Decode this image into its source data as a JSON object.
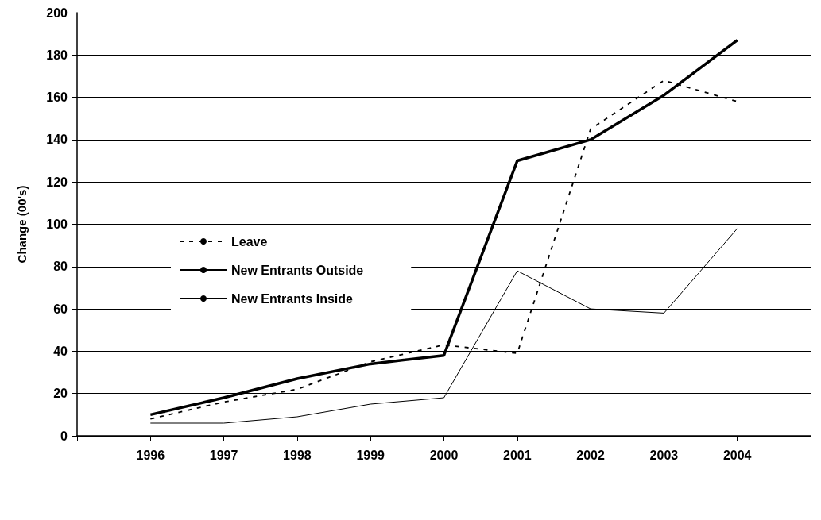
{
  "chart_data": {
    "type": "line",
    "ylabel": "Change (00's)",
    "categories": [
      null,
      "1996",
      "1997",
      "1998",
      "1999",
      "2000",
      "2001",
      "2002",
      "2003",
      "2004",
      null
    ],
    "series": [
      {
        "name": "Leave",
        "color": "#000000",
        "line_style": "dashed",
        "values": [
          null,
          8,
          16,
          22,
          35,
          43,
          39,
          145,
          168,
          158,
          null
        ]
      },
      {
        "name": "New Entrants Outside",
        "color": "#000000",
        "line_style": "solid",
        "values": [
          null,
          6,
          6,
          9,
          15,
          18,
          78,
          60,
          58,
          98,
          null
        ]
      },
      {
        "name": "New Entrants Inside",
        "color": "#000000",
        "line_style": "solid",
        "values": [
          null,
          10,
          18,
          27,
          34,
          38,
          130,
          140,
          161,
          187,
          null
        ]
      }
    ],
    "ylim": [
      0,
      200
    ],
    "yticks": [
      0,
      20,
      40,
      60,
      80,
      100,
      120,
      140,
      160,
      180,
      200
    ],
    "grid": "y",
    "legend": "left",
    "marker": "none"
  }
}
